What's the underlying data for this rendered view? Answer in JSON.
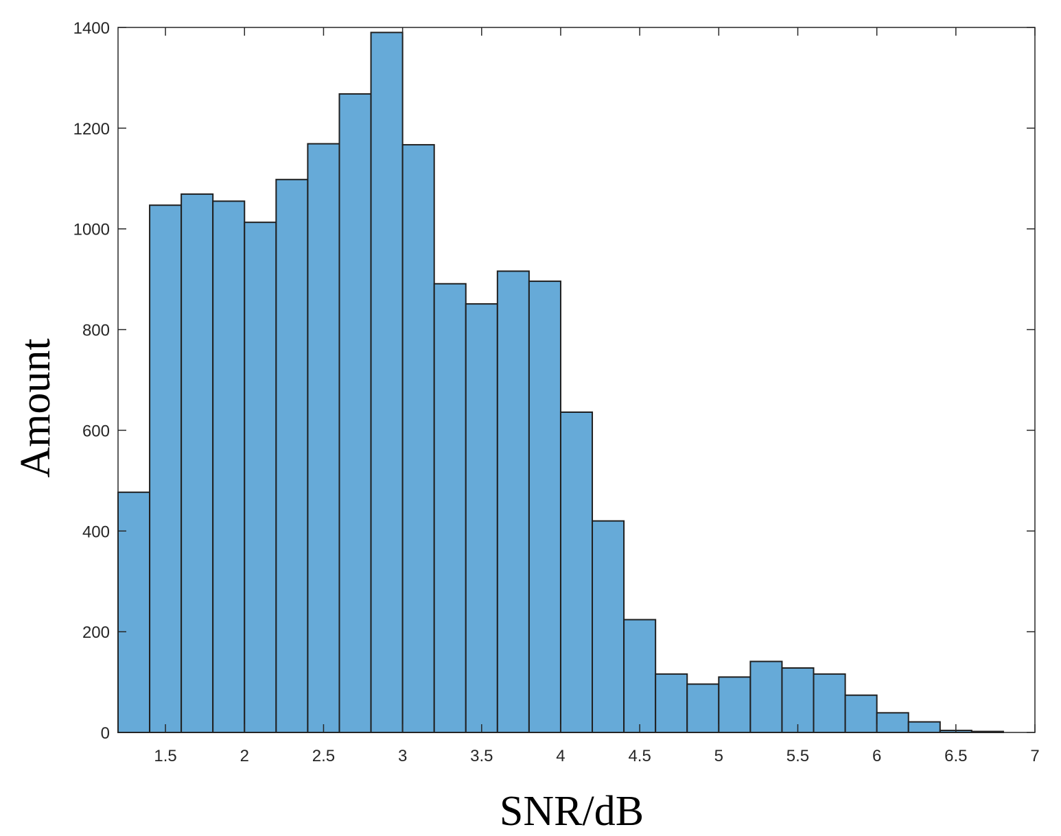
{
  "chart_data": {
    "type": "bar",
    "subtype": "histogram",
    "xlabel": "SNR/dB",
    "ylabel": "Amount",
    "xlim": [
      1.2,
      7
    ],
    "ylim": [
      0,
      1400
    ],
    "bin_width": 0.2,
    "bin_edges": [
      1.2,
      1.4,
      1.6,
      1.8,
      2.0,
      2.2,
      2.4,
      2.6,
      2.8,
      3.0,
      3.2,
      3.4,
      3.6,
      3.8,
      4.0,
      4.2,
      4.4,
      4.6,
      4.8,
      5.0,
      5.2,
      5.4,
      5.6,
      5.8,
      6.0,
      6.2,
      6.4,
      6.6,
      6.8
    ],
    "values": [
      477,
      1047,
      1069,
      1055,
      1013,
      1098,
      1169,
      1268,
      1390,
      1167,
      891,
      851,
      916,
      896,
      636,
      420,
      224,
      116,
      96,
      110,
      141,
      128,
      116,
      74,
      39,
      21,
      4,
      2
    ],
    "xticks": [
      "1.5",
      "2",
      "2.5",
      "3",
      "3.5",
      "4",
      "4.5",
      "5",
      "5.5",
      "6",
      "6.5",
      "7"
    ],
    "yticks": [
      "0",
      "200",
      "400",
      "600",
      "800",
      "1000",
      "1200",
      "1400"
    ],
    "bar_color": "#66aad8",
    "edge_color": "#1f1f1f",
    "grid": false,
    "legend": "none"
  }
}
